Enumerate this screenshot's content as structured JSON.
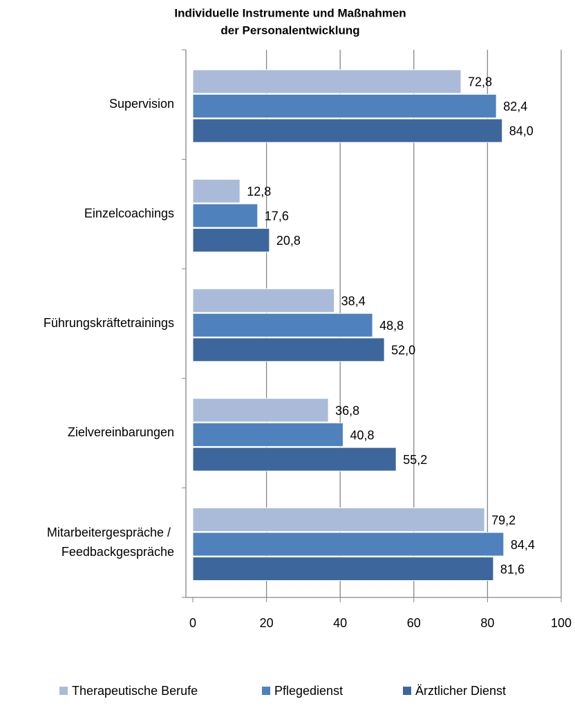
{
  "chart_data": {
    "type": "barh",
    "title": [
      "Individuelle Instrumente und Maßnahmen",
      "der Personalentwicklung"
    ],
    "categories": [
      "Supervision",
      "Einzelcoachings",
      "Führungskräftetrainings",
      "Zielvereinbarungen",
      "Mitarbeitergespräche / Feedbackgespräche"
    ],
    "series": [
      {
        "name": "Therapeutische Berufe",
        "color": "#a9bbd9",
        "values": [
          72.8,
          12.8,
          38.4,
          36.8,
          79.2
        ],
        "value_labels": [
          "72,8",
          "12,8",
          "38,4",
          "36,8",
          "79,2"
        ]
      },
      {
        "name": "Pflegedienst",
        "color": "#4f81bd",
        "values": [
          82.4,
          17.6,
          48.8,
          40.8,
          84.4
        ],
        "value_labels": [
          "82,4",
          "17,6",
          "48,8",
          "40,8",
          "84,4"
        ]
      },
      {
        "name": "Ärztlicher Dienst",
        "color": "#3d679c",
        "values": [
          84.0,
          20.8,
          52.0,
          55.2,
          81.6
        ],
        "value_labels": [
          "84,0",
          "20,8",
          "52,0",
          "55,2",
          "81,6"
        ]
      }
    ],
    "xlim": [
      0,
      100
    ],
    "xticks": [
      0,
      20,
      40,
      60,
      80,
      100
    ],
    "grid": true,
    "legend": "bottom"
  }
}
